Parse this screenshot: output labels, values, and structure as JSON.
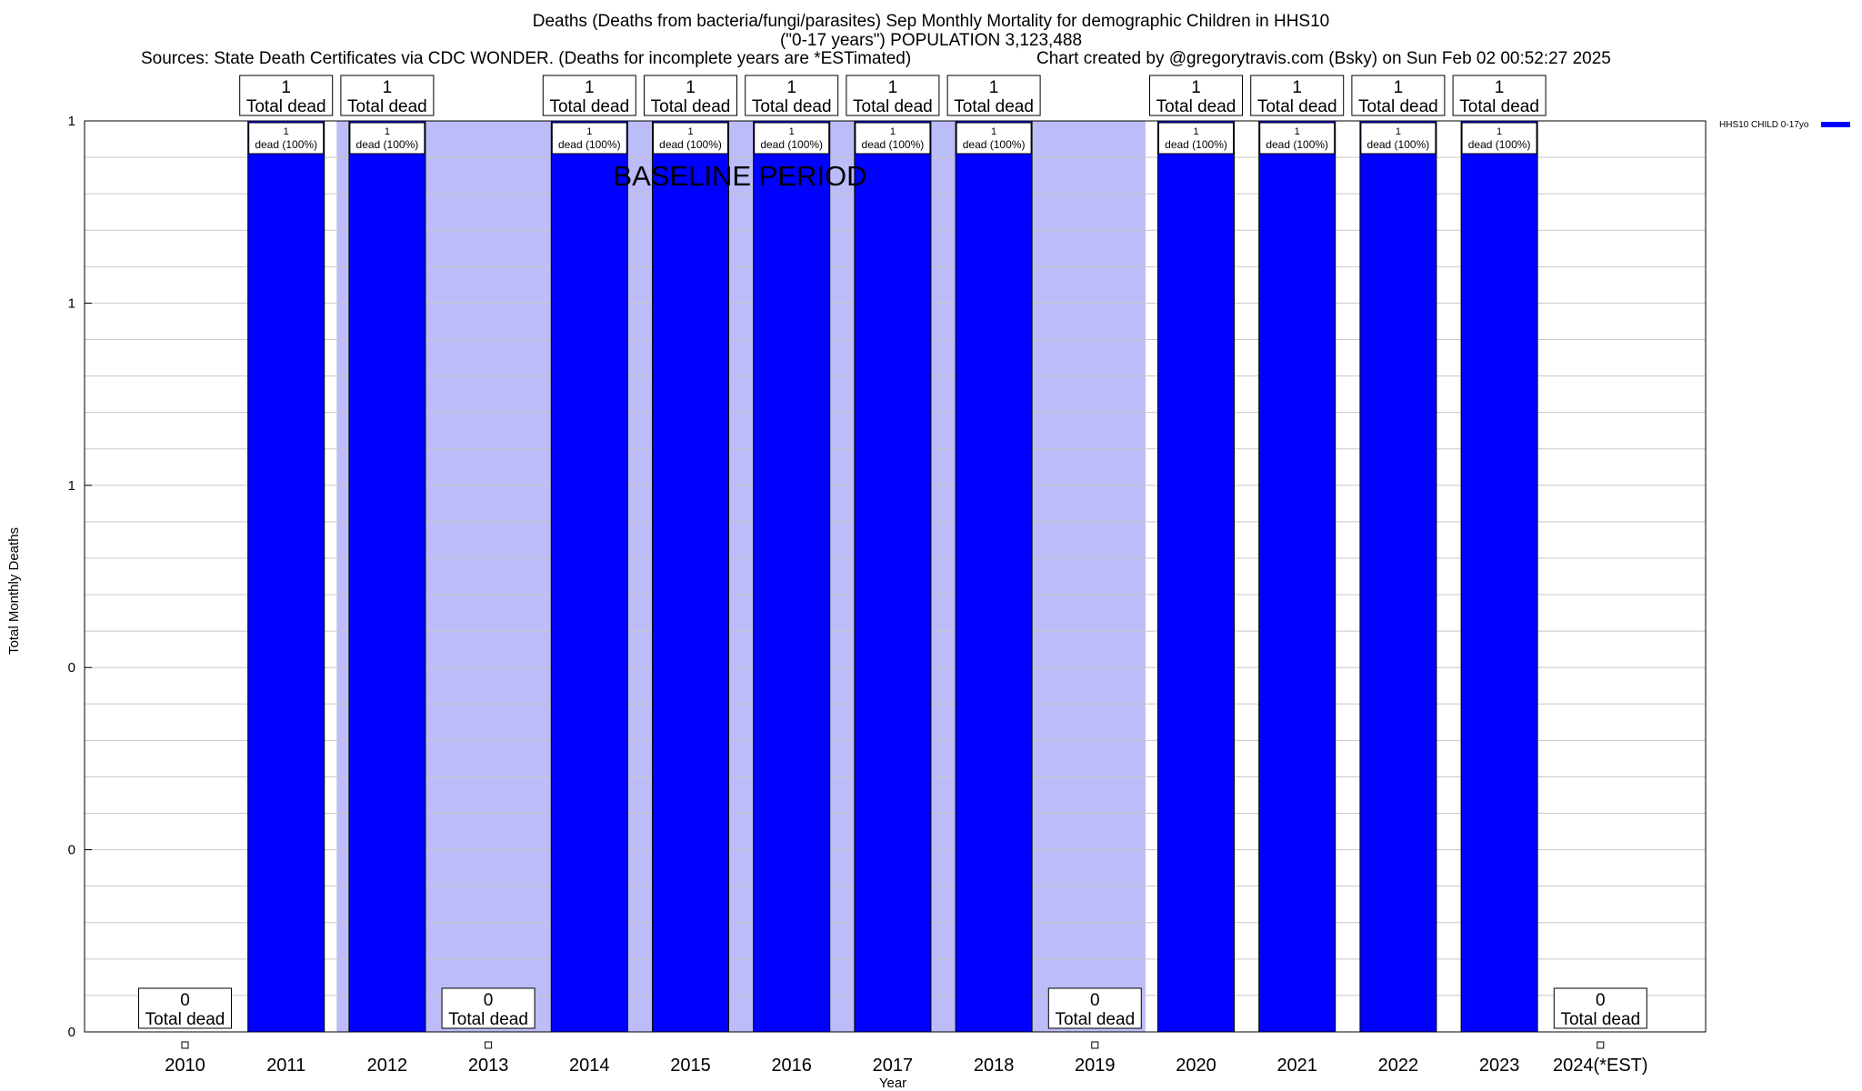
{
  "title_line1": "Deaths (Deaths from bacteria/fungi/parasites) Sep Monthly Mortality for demographic Children in HHS10",
  "title_line2": "(\"0-17 years\") POPULATION 3,123,488",
  "sources": "Sources: State Death Certificates via CDC WONDER. (Deaths for incomplete years are *ESTimated)",
  "credit": "Chart created by @gregorytravis.com (Bsky) on Sun Feb 02 00:52:27 2025",
  "baseline_label": "BASELINE PERIOD",
  "colors": {
    "bar": "#0000ff",
    "baseline_shade": "#bcbcf8",
    "grid": "#c8c8c8"
  },
  "chart_data": {
    "type": "bar",
    "categories": [
      "2010",
      "2011",
      "2012",
      "2013",
      "2014",
      "2015",
      "2016",
      "2017",
      "2018",
      "2019",
      "2020",
      "2021",
      "2022",
      "2023",
      "2024(*EST)"
    ],
    "series": [
      {
        "name": "HHS10 CHILD 0-17yo",
        "values": [
          0,
          1,
          1,
          0,
          1,
          1,
          1,
          1,
          1,
          0,
          1,
          1,
          1,
          1,
          0
        ]
      }
    ],
    "total_label_suffix": "Total dead",
    "inside_labels": [
      "",
      "dead (100%)",
      "dead (100%)",
      "",
      "dead (100%)",
      "dead (100%)",
      "dead (100%)",
      "dead (100%)",
      "dead (100%)",
      "",
      "dead (100%)",
      "dead (100%)",
      "dead (100%)",
      "dead (100%)",
      ""
    ],
    "baseline_shading": {
      "from": "2012",
      "to": "2019"
    },
    "xlabel": "Year",
    "ylabel": "Total Monthly Deaths",
    "ylim": [
      0,
      1
    ],
    "yticks": [
      "0",
      "0",
      "0",
      "1",
      "1",
      "1"
    ],
    "grid": true,
    "legend_position": "top-right"
  }
}
